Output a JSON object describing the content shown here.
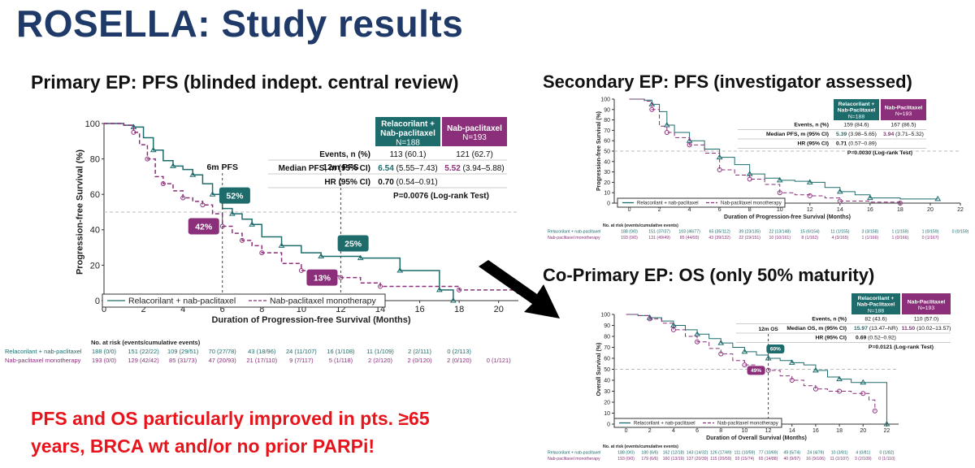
{
  "slide": {
    "title": "ROSELLA: Study results",
    "callout_line1": "PFS and OS particularly improved in pts. ≥65",
    "callout_line2": "years, BRCA wt and/or no prior PARPi!"
  },
  "colors": {
    "treatment": "#1d6b6b",
    "control": "#8b2f7a",
    "title": "#1f3a68",
    "callout": "#e8141c"
  },
  "chart_data": [
    {
      "id": "pfs_bicr",
      "heading": "Primary EP: PFS (blinded indept. central review)",
      "type": "line",
      "xlabel": "Duration of Progression-free Survival (Months)",
      "ylabel": "Progression-free Survival (%)",
      "xlim": [
        0,
        21
      ],
      "ylim": [
        0,
        100
      ],
      "x_ticks": [
        "0",
        "2",
        "4",
        "6",
        "8",
        "10",
        "12",
        "14",
        "16",
        "18",
        "20"
      ],
      "y_ticks": [
        "0",
        "20",
        "40",
        "60",
        "80",
        "100"
      ],
      "series": [
        {
          "name": "Relacorilant + nab-paclitaxel",
          "x": [
            0,
            1,
            1.5,
            2,
            2.5,
            3,
            3.5,
            4,
            4.5,
            5,
            5.5,
            6,
            6.5,
            7,
            7.5,
            8,
            9,
            10,
            11,
            12,
            13,
            14,
            15,
            15.5,
            17,
            17.7,
            17.7
          ],
          "y": [
            100,
            99,
            98,
            92,
            85,
            79,
            76,
            74,
            71,
            66,
            60,
            52,
            49,
            46,
            43,
            36,
            31,
            27,
            25,
            25,
            24,
            24,
            17,
            17,
            6,
            6,
            0
          ]
        },
        {
          "name": "Nab-paclitaxel monotherapy",
          "x": [
            0,
            1,
            1.5,
            1.8,
            2.2,
            2.6,
            3,
            3.5,
            4,
            4.5,
            5,
            5.5,
            6,
            6.5,
            7,
            7.5,
            8,
            9,
            10,
            11,
            12,
            13,
            14,
            16,
            18,
            20,
            21
          ],
          "y": [
            100,
            99,
            95,
            88,
            80,
            70,
            66,
            62,
            58,
            56,
            54,
            49,
            42,
            38,
            34,
            31,
            27,
            21,
            17,
            14,
            13,
            10,
            8,
            8,
            6,
            6,
            5
          ]
        }
      ],
      "annotations": [
        {
          "label": "6m PFS",
          "x": 6,
          "treatment": "52%",
          "control": "42%"
        },
        {
          "label": "12m PFS",
          "x": 12,
          "treatment": "25%",
          "control": "13%"
        }
      ],
      "table": {
        "header_treatment": [
          "Relacorilant +",
          "Nab-paclitaxel",
          "N=188"
        ],
        "header_control": [
          "Nab-paclitaxel",
          "N=193"
        ],
        "rows": [
          {
            "label": "Events, n (%)",
            "treatment": "113 (60.1)",
            "control": "121 (62.7)"
          },
          {
            "label": "Median PFS, m (95% CI)",
            "treatment": "6.54",
            "treatment_ci": "(5.55–7.43)",
            "control": "5.52",
            "control_ci": "(3.94–5.88)"
          },
          {
            "label": "HR (95% CI)",
            "treatment": "0.70",
            "treatment_ci": "(0.54–0.91)"
          }
        ],
        "pvalue": "P=0.0076 (Log-rank Test)"
      },
      "risk": {
        "title": "No. at risk (events/cumulative events)",
        "rows": [
          {
            "name": "Relacorilant + nab-paclitaxel",
            "values": [
              "188 (0/0)",
              "151 (22/22)",
              "109 (29/51)",
              "70 (27/78)",
              "43 (18/96)",
              "24 (11/107)",
              "16 (1/108)",
              "11 (1/109)",
              "2 (2/111)",
              "0 (2/113)",
              ""
            ]
          },
          {
            "name": "Nab-paclitaxel monotherapy",
            "values": [
              "193 (0/0)",
              "129 (42/42)",
              "85 (31/73)",
              "47 (20/93)",
              "21 (17/110)",
              "9 (7/117)",
              "5 (1/118)",
              "2 (2/120)",
              "2 (0/120)",
              "2 (0/120)",
              "0 (1/121)"
            ]
          }
        ]
      }
    },
    {
      "id": "pfs_investigator",
      "heading": "Secondary EP: PFS (investigator assessed)",
      "type": "line",
      "xlabel": "Duration of Progression-free Survival (Months)",
      "ylabel": "Progression-free Survival (%)",
      "xlim": [
        -1,
        22
      ],
      "ylim": [
        0,
        100
      ],
      "x_ticks": [
        "0",
        "2",
        "4",
        "6",
        "8",
        "10",
        "12",
        "14",
        "16",
        "18",
        "20",
        "22"
      ],
      "y_ticks": [
        "0",
        "10",
        "20",
        "30",
        "40",
        "50",
        "60",
        "70",
        "80",
        "90",
        "100"
      ],
      "series": [
        {
          "name": "Relacorilant + nab-paclitaxel",
          "x": [
            0,
            1,
            1.5,
            2,
            2.5,
            3,
            4,
            5,
            6,
            7,
            8,
            9,
            10,
            11,
            12,
            13,
            14,
            15,
            16,
            18,
            20.5
          ],
          "y": [
            100,
            99,
            95,
            88,
            75,
            68,
            60,
            52,
            44,
            37,
            28,
            24,
            22,
            21,
            20,
            15,
            11,
            8,
            5,
            4,
            4
          ]
        },
        {
          "name": "Nab-paclitaxel monotherapy",
          "x": [
            0,
            1,
            1.5,
            2,
            2.5,
            3,
            4,
            5,
            6,
            7,
            8,
            9,
            10,
            11,
            12,
            13,
            14,
            16,
            18
          ],
          "y": [
            100,
            98,
            90,
            74,
            68,
            63,
            56,
            48,
            32,
            27,
            23,
            18,
            10,
            8,
            7,
            5,
            2,
            1,
            0
          ]
        }
      ],
      "table": {
        "header_treatment": [
          "Relacorilant +",
          "Nab-Paclitaxel",
          "N=188"
        ],
        "header_control": [
          "Nab-Paclitaxel",
          "N=193"
        ],
        "rows": [
          {
            "label": "Events, n (%)",
            "treatment": "159 (84.6)",
            "control": "167 (86.5)"
          },
          {
            "label": "Median PFS, m (95% CI)",
            "treatment": "5.39",
            "treatment_ci": "(3.98–5.65)",
            "control": "3.94",
            "control_ci": "(3.71–5.32)"
          },
          {
            "label": "HR (95% CI)",
            "treatment": "0.71",
            "treatment_ci": "(0.57–0.89)"
          }
        ],
        "pvalue": "P=0.0030 (Log-rank Test)"
      },
      "risk": {
        "title": "No. at risk (events/cumulative events)",
        "rows": [
          {
            "name": "Relacorilant + nab-paclitaxel",
            "values": [
              "188 (0/0)",
              "151 (37/37)",
              "103 (46/77)",
              "65 (35/112)",
              "39 (23/135)",
              "22 (13/148)",
              "15 (6/154)",
              "11 (1/155)",
              "3 (3/158)",
              "1 (1/159)",
              "1 (0/159)",
              "0 (0/159)"
            ]
          },
          {
            "name": "Nab-paclitaxel monotherapy",
            "values": [
              "193 (0/0)",
              "131 (49/49)",
              "85 (44/93)",
              "43 (39/132)",
              "22 (19/151)",
              "10 (10/161)",
              "8 (1/162)",
              "4 (3/165)",
              "1 (1/166)",
              "1 (0/166)",
              "0 (1/167)",
              ""
            ]
          }
        ]
      }
    },
    {
      "id": "os",
      "heading": "Co-Primary EP: OS (only 50% maturity)",
      "type": "line",
      "xlabel": "Duration of Overall Survival (Months)",
      "ylabel": "Overall Survival (%)",
      "xlim": [
        -1,
        23
      ],
      "ylim": [
        0,
        100
      ],
      "x_ticks": [
        "0",
        "2",
        "4",
        "6",
        "8",
        "10",
        "12",
        "14",
        "16",
        "18",
        "20",
        "22"
      ],
      "y_ticks": [
        "0",
        "10",
        "20",
        "30",
        "40",
        "50",
        "60",
        "70",
        "80",
        "90",
        "100"
      ],
      "series": [
        {
          "name": "Relacorilant + nab-paclitaxel",
          "x": [
            0,
            1,
            2,
            3,
            4,
            5,
            6,
            7,
            8,
            9,
            10,
            11,
            12,
            13,
            14,
            15,
            16,
            17,
            18,
            19,
            20,
            21,
            22
          ],
          "y": [
            100,
            99,
            97,
            94,
            90,
            86,
            82,
            78,
            74,
            70,
            66,
            63,
            60,
            58,
            56,
            54,
            49,
            43,
            41,
            38,
            38,
            38,
            0
          ]
        },
        {
          "name": "Nab-paclitaxel monotherapy",
          "x": [
            0,
            1,
            2,
            3,
            4,
            5,
            6,
            7,
            8,
            9,
            10,
            11,
            12,
            13,
            14,
            15,
            16,
            17,
            18,
            19,
            20,
            20.5,
            21
          ],
          "y": [
            100,
            99,
            96,
            92,
            86,
            80,
            75,
            69,
            64,
            58,
            54,
            51,
            49,
            44,
            40,
            35,
            32,
            30,
            30,
            28,
            28,
            22,
            12
          ]
        }
      ],
      "annotations": [
        {
          "label": "12m OS",
          "x": 12,
          "treatment": "60%",
          "control": "49%"
        }
      ],
      "table": {
        "header_treatment": [
          "Relacorilant +",
          "Nab-Paclitaxel",
          "N=188"
        ],
        "header_control": [
          "Nab-Paclitaxel",
          "N=193"
        ],
        "rows": [
          {
            "label": "Events, n (%)",
            "treatment": "82 (43.6)",
            "control": "110 (57.0)"
          },
          {
            "label": "Median OS, m (95% CI)",
            "treatment": "15.97",
            "treatment_ci": "(13.47–NR)",
            "control": "11.50",
            "control_ci": "(10.02–13.57)"
          },
          {
            "label": "HR (95% CI)",
            "treatment": "0.69",
            "treatment_ci": "(0.52–0.92)"
          }
        ],
        "pvalue": "P=0.0121 (Log-rank Test)"
      },
      "risk": {
        "title": "No. at risk (events/cumulative events)",
        "rows": [
          {
            "name": "Relacorilant + nab-paclitaxel",
            "values": [
              "188 (0/0)",
              "180 (6/6)",
              "162 (12/18)",
              "143 (14/32)",
              "126 (17/49)",
              "111 (10/59)",
              "77 (10/69)",
              "49 (5/74)",
              "24 (4/78)",
              "10 (3/81)",
              "4 (0/81)",
              "0 (1/82)"
            ]
          },
          {
            "name": "Nab-paclitaxel monotherapy",
            "values": [
              "193 (0/0)",
              "179 (6/6)",
              "160 (13/19)",
              "137 (20/39)",
              "115 (20/59)",
              "93 (15/74)",
              "65 (14/88)",
              "40 (9/97)",
              "16 (9/106)",
              "11 (1/107)",
              "3 (2/109)",
              "0 (1/110)"
            ]
          }
        ]
      }
    }
  ]
}
